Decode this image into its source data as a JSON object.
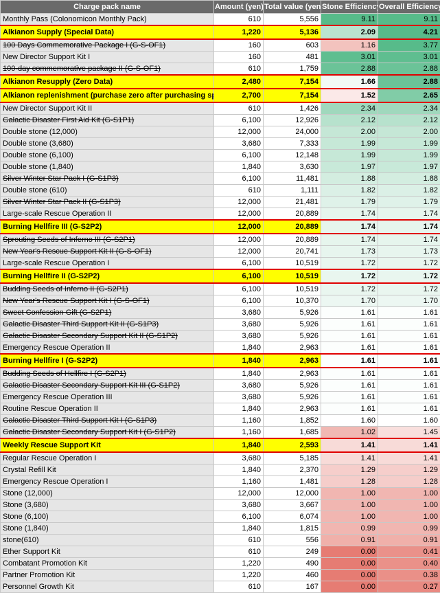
{
  "table": {
    "header": [
      "Charge pack name",
      "Amount (yen)",
      "Total value (yen)",
      "Stone Efficiency",
      "Overall Efficiency"
    ],
    "rows": [
      {
        "style": "normal",
        "cells": [
          "Monthly Pass (Colonomicon Monthly Pack)",
          "610",
          "5,556",
          "9.11",
          "9.11"
        ]
      },
      {
        "style": "highlight",
        "cells": [
          "Alkianon Supply (Special Data)",
          "1,220",
          "5,136",
          "2.09",
          "4.21"
        ]
      },
      {
        "style": "strikethrough",
        "cells": [
          "100 Days Commemorative Package I (G-S-OF1)",
          "160",
          "603",
          "1.16",
          "3.77"
        ]
      },
      {
        "style": "normal",
        "cells": [
          "New Director Support Kit I",
          "160",
          "481",
          "3.01",
          "3.01"
        ]
      },
      {
        "style": "strikethrough",
        "cells": [
          "100-day commemorative package II (G-S-OF1)",
          "610",
          "1,759",
          "2.88",
          "2.88"
        ]
      },
      {
        "style": "highlight",
        "cells": [
          "Alkianon Resupply (Zero Data)",
          "2,480",
          "7,154",
          "1.66",
          "2.88"
        ]
      },
      {
        "style": "highlight",
        "cells": [
          "Alkianon replenishment (purchase zero after purchasing spe",
          "2,700",
          "7,154",
          "1.52",
          "2.65"
        ]
      },
      {
        "style": "normal",
        "cells": [
          "New Director Support Kit II",
          "610",
          "1,426",
          "2.34",
          "2.34"
        ]
      },
      {
        "style": "strikethrough",
        "cells": [
          "Galactic Disaster First Aid Kit (G-S1P1)",
          "6,100",
          "12,926",
          "2.12",
          "2.12"
        ]
      },
      {
        "style": "normal",
        "cells": [
          "Double stone (12,000)",
          "12,000",
          "24,000",
          "2.00",
          "2.00"
        ]
      },
      {
        "style": "normal",
        "cells": [
          "Double stone (3,680)",
          "3,680",
          "7,333",
          "1.99",
          "1.99"
        ]
      },
      {
        "style": "normal",
        "cells": [
          "Double stone (6,100)",
          "6,100",
          "12,148",
          "1.99",
          "1.99"
        ]
      },
      {
        "style": "normal",
        "cells": [
          "Double stone (1,840)",
          "1,840",
          "3,630",
          "1.97",
          "1.97"
        ]
      },
      {
        "style": "strikethrough",
        "cells": [
          "Silver Winter Star Pack I (G-S1P3)",
          "6,100",
          "11,481",
          "1.88",
          "1.88"
        ]
      },
      {
        "style": "normal",
        "cells": [
          "Double stone (610)",
          "610",
          "1,111",
          "1.82",
          "1.82"
        ]
      },
      {
        "style": "strikethrough",
        "cells": [
          "Silver Winter Star Pack II (G-S1P3)",
          "12,000",
          "21,481",
          "1.79",
          "1.79"
        ]
      },
      {
        "style": "normal",
        "cells": [
          "Large-scale Rescue Operation II",
          "12,000",
          "20,889",
          "1.74",
          "1.74"
        ]
      },
      {
        "style": "highlight",
        "cells": [
          "Burning Hellfire III (G-S2P2)",
          "12,000",
          "20,889",
          "1.74",
          "1.74"
        ]
      },
      {
        "style": "strikethrough",
        "cells": [
          "Sprouting Seeds of Inferno III (G-S2P1)",
          "12,000",
          "20,889",
          "1.74",
          "1.74"
        ]
      },
      {
        "style": "strikethrough",
        "cells": [
          "New Year's Rescue Support Kit II (G-S-OF1)",
          "12,000",
          "20,741",
          "1.73",
          "1.73"
        ]
      },
      {
        "style": "normal",
        "cells": [
          "Large-scale Rescue Operation I",
          "6,100",
          "10,519",
          "1.72",
          "1.72"
        ]
      },
      {
        "style": "highlight",
        "cells": [
          "Burning Hellfire II (G-S2P2)",
          "6,100",
          "10,519",
          "1.72",
          "1.72"
        ]
      },
      {
        "style": "strikethrough",
        "cells": [
          "Budding Seeds of Inferno II (G-S2P1)",
          "6,100",
          "10,519",
          "1.72",
          "1.72"
        ]
      },
      {
        "style": "strikethrough",
        "cells": [
          "New Year's Rescue Support Kit I (G-S-OF1)",
          "6,100",
          "10,370",
          "1.70",
          "1.70"
        ]
      },
      {
        "style": "strikethrough",
        "cells": [
          "Sweet Confession Gift (G-S2P1)",
          "3,680",
          "5,926",
          "1.61",
          "1.61"
        ]
      },
      {
        "style": "strikethrough",
        "cells": [
          "Galactic Disaster Third Support Kit II (G-S1P3)",
          "3,680",
          "5,926",
          "1.61",
          "1.61"
        ]
      },
      {
        "style": "strikethrough",
        "cells": [
          "Galactic Disaster Secondary Support Kit II (G-S1P2)",
          "3,680",
          "5,926",
          "1.61",
          "1.61"
        ]
      },
      {
        "style": "normal",
        "cells": [
          "Emergency Rescue Operation II",
          "1,840",
          "2,963",
          "1.61",
          "1.61"
        ]
      },
      {
        "style": "highlight",
        "cells": [
          "Burning Hellfire I (G-S2P2)",
          "1,840",
          "2,963",
          "1.61",
          "1.61"
        ]
      },
      {
        "style": "strikethrough",
        "cells": [
          "Budding Seeds of Hellfire I (G-S2P1)",
          "1,840",
          "2,963",
          "1.61",
          "1.61"
        ]
      },
      {
        "style": "strikethrough",
        "cells": [
          "Galactic Disaster Secondary Support Kit III (G-S1P2)",
          "3,680",
          "5,926",
          "1.61",
          "1.61"
        ]
      },
      {
        "style": "normal",
        "cells": [
          "Emergency Rescue Operation III",
          "3,680",
          "5,926",
          "1.61",
          "1.61"
        ]
      },
      {
        "style": "normal",
        "cells": [
          "Routine Rescue Operation II",
          "1,840",
          "2,963",
          "1.61",
          "1.61"
        ]
      },
      {
        "style": "strikethrough",
        "cells": [
          "Galactic Disaster Third Support Kit I (G-S1P3)",
          "1,160",
          "1,852",
          "1.60",
          "1.60"
        ]
      },
      {
        "style": "strikethrough",
        "cells": [
          "Galactic Disaster Secondary Support Kit I (G-S1P2)",
          "1,160",
          "1,685",
          "1.02",
          "1.45"
        ]
      },
      {
        "style": "highlight",
        "cells": [
          "Weekly Rescue Support Kit",
          "1,840",
          "2,593",
          "1.41",
          "1.41"
        ]
      },
      {
        "style": "normal",
        "cells": [
          "Regular Rescue Operation I",
          "3,680",
          "5,185",
          "1.41",
          "1.41"
        ]
      },
      {
        "style": "normal",
        "cells": [
          "Crystal Refill Kit",
          "1,840",
          "2,370",
          "1.29",
          "1.29"
        ]
      },
      {
        "style": "normal",
        "cells": [
          "Emergency Rescue Operation I",
          "1,160",
          "1,481",
          "1.28",
          "1.28"
        ]
      },
      {
        "style": "normal",
        "cells": [
          "Stone (12,000)",
          "12,000",
          "12,000",
          "1.00",
          "1.00"
        ]
      },
      {
        "style": "normal",
        "cells": [
          "Stone (3,680)",
          "3,680",
          "3,667",
          "1.00",
          "1.00"
        ]
      },
      {
        "style": "normal",
        "cells": [
          "Stone (6,100)",
          "6,100",
          "6,074",
          "1.00",
          "1.00"
        ]
      },
      {
        "style": "normal",
        "cells": [
          "Stone (1,840)",
          "1,840",
          "1,815",
          "0.99",
          "0.99"
        ]
      },
      {
        "style": "normal",
        "cells": [
          "stone(610)",
          "610",
          "556",
          "0.91",
          "0.91"
        ]
      },
      {
        "style": "normal",
        "cells": [
          "Ether Support Kit",
          "610",
          "249",
          "0.00",
          "0.41"
        ]
      },
      {
        "style": "normal",
        "cells": [
          "Combatant Promotion Kit",
          "1,220",
          "490",
          "0.00",
          "0.40"
        ]
      },
      {
        "style": "normal",
        "cells": [
          "Partner Promotion Kit",
          "1,220",
          "460",
          "0.00",
          "0.38"
        ]
      },
      {
        "style": "normal",
        "cells": [
          "Personnel Growth Kit",
          "610",
          "167",
          "0.00",
          "0.27"
        ]
      }
    ]
  }
}
